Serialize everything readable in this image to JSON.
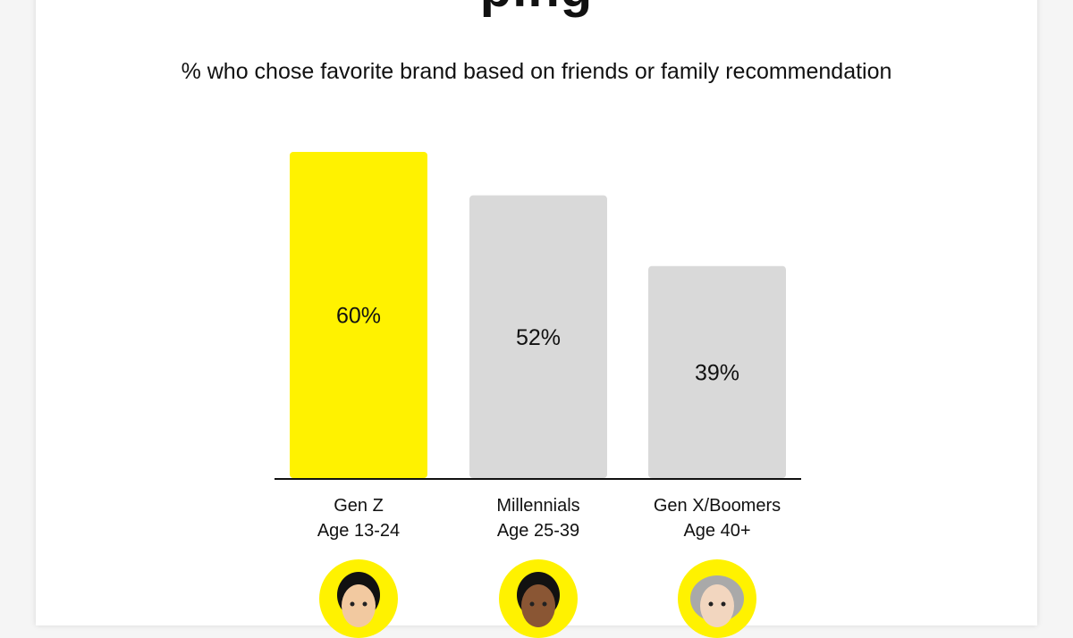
{
  "title_fragment": "ping",
  "subtitle": "% who chose favorite brand based on friends or family recommendation",
  "colors": {
    "highlight": "#fff200",
    "default_bar": "#d9d9d9",
    "axis": "#111111"
  },
  "chart_data": {
    "type": "bar",
    "title": "",
    "subtitle": "% who chose favorite brand based on friends or family recommendation",
    "categories": [
      "Gen Z",
      "Millennials",
      "Gen X/Boomers"
    ],
    "category_sublabels": [
      "Age 13-24",
      "Age 25-39",
      "Age 40+"
    ],
    "values": [
      60,
      52,
      39
    ],
    "value_labels": [
      "60%",
      "52%",
      "39%"
    ],
    "highlight_index": 0,
    "ylim": [
      0,
      60
    ],
    "grid": false,
    "xlabel": "",
    "ylabel": ""
  },
  "avatars": [
    {
      "icon": "gen-z-avatar-icon",
      "hair": "#111111",
      "skin": "#f2c9a0"
    },
    {
      "icon": "millennial-avatar-icon",
      "hair": "#111111",
      "skin": "#8a5634"
    },
    {
      "icon": "boomer-avatar-icon",
      "hair": "#a9a9a9",
      "skin": "#f2d6bf"
    }
  ]
}
